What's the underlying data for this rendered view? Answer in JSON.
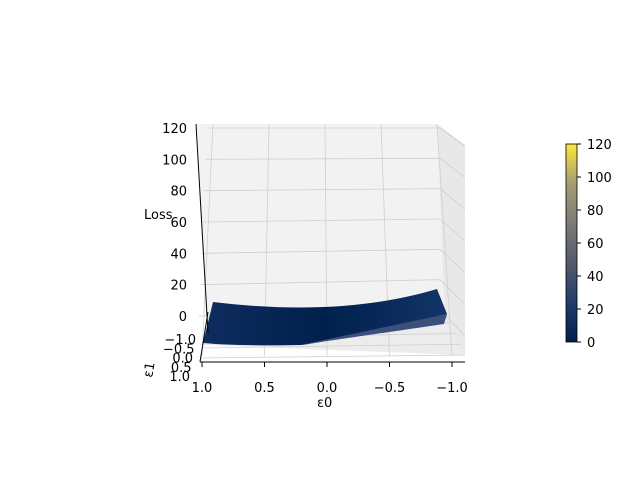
{
  "chart_data": {
    "type": "surface3d",
    "title": "",
    "zlabel": "Loss",
    "xlabel": "ε0",
    "ylabel": "ε1",
    "xlim": [
      -1.0,
      1.0
    ],
    "ylim": [
      -1.0,
      1.0
    ],
    "zlim": [
      0,
      120
    ],
    "x_ticks": [
      "1.0",
      "0.5",
      "0.0",
      "−0.5",
      "−1.0"
    ],
    "y_ticks": [
      "−1.0",
      "−0.5",
      "0.0",
      "0.5",
      "1.0"
    ],
    "z_ticks": [
      "0",
      "20",
      "40",
      "60",
      "80",
      "100",
      "120"
    ],
    "x_tick_values": [
      1.0,
      0.5,
      0.0,
      -0.5,
      -1.0
    ],
    "y_tick_values": [
      -1.0,
      -0.5,
      0.0,
      0.5,
      1.0
    ],
    "z_tick_values": [
      0,
      20,
      40,
      60,
      80,
      100,
      120
    ],
    "surface_edge_loss": {
      "eps0": [
        1.0,
        0.5,
        0.0,
        -0.5,
        -1.0
      ],
      "loss_at_eps1_min": [
        10,
        4,
        1,
        4,
        14
      ]
    },
    "colormap": "cividis",
    "colorbar": {
      "ticks": [
        "0",
        "20",
        "40",
        "60",
        "80",
        "100",
        "120"
      ],
      "tick_values": [
        0,
        20,
        40,
        60,
        80,
        100,
        120
      ],
      "range": [
        0,
        120
      ]
    },
    "grid": true
  }
}
